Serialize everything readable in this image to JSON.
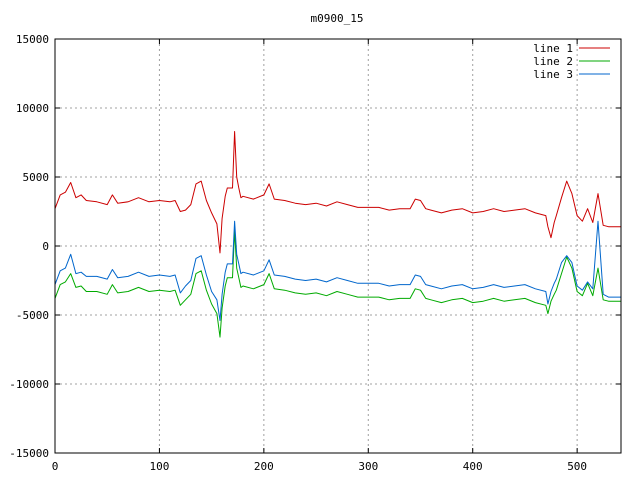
{
  "chart_data": {
    "type": "line",
    "title": "m0900_15",
    "xlabel": "",
    "ylabel": "",
    "xlim": [
      0,
      542
    ],
    "ylim": [
      -15000,
      15000
    ],
    "x_ticks": [
      0,
      100,
      200,
      300,
      400,
      500
    ],
    "y_ticks": [
      -15000,
      -10000,
      -5000,
      0,
      5000,
      10000,
      15000
    ],
    "grid": true,
    "legend_position": "top-right",
    "series": [
      {
        "name": "line 1",
        "color": "#cc0000",
        "x": [
          0,
          5,
          10,
          15,
          20,
          25,
          30,
          40,
          50,
          55,
          60,
          70,
          80,
          90,
          100,
          110,
          115,
          120,
          125,
          130,
          135,
          140,
          145,
          150,
          155,
          158,
          160,
          163,
          165,
          170,
          172,
          174,
          176,
          178,
          180,
          190,
          200,
          205,
          210,
          220,
          230,
          240,
          250,
          260,
          270,
          280,
          290,
          300,
          310,
          320,
          330,
          340,
          345,
          350,
          355,
          360,
          370,
          380,
          390,
          400,
          410,
          420,
          430,
          440,
          450,
          460,
          470,
          472,
          475,
          478,
          480,
          485,
          490,
          495,
          500,
          505,
          510,
          515,
          520,
          525,
          530,
          542
        ],
        "y": [
          2700,
          3700,
          3900,
          4600,
          3500,
          3700,
          3300,
          3200,
          3000,
          3700,
          3100,
          3200,
          3500,
          3200,
          3300,
          3200,
          3300,
          2500,
          2600,
          3000,
          4500,
          4700,
          3300,
          2400,
          1600,
          -500,
          2000,
          3600,
          4200,
          4200,
          8300,
          5000,
          4200,
          3500,
          3600,
          3400,
          3700,
          4500,
          3400,
          3300,
          3100,
          3000,
          3100,
          2900,
          3200,
          3000,
          2800,
          2800,
          2800,
          2600,
          2700,
          2700,
          3400,
          3300,
          2700,
          2600,
          2400,
          2600,
          2700,
          2400,
          2500,
          2700,
          2500,
          2600,
          2700,
          2400,
          2200,
          1400,
          600,
          1700,
          2200,
          3500,
          4700,
          3800,
          2200,
          1800,
          2700,
          1700,
          3800,
          1500,
          1400,
          1400
        ]
      },
      {
        "name": "line 2",
        "color": "#00aa00",
        "x": [
          0,
          5,
          10,
          15,
          20,
          25,
          30,
          40,
          50,
          55,
          60,
          70,
          80,
          90,
          100,
          110,
          115,
          120,
          125,
          130,
          135,
          140,
          145,
          150,
          155,
          158,
          160,
          163,
          165,
          170,
          172,
          174,
          176,
          178,
          180,
          190,
          200,
          205,
          210,
          220,
          230,
          240,
          250,
          260,
          270,
          280,
          290,
          300,
          310,
          320,
          330,
          340,
          345,
          350,
          355,
          360,
          370,
          380,
          390,
          400,
          410,
          420,
          430,
          440,
          450,
          460,
          470,
          472,
          475,
          478,
          480,
          485,
          490,
          495,
          500,
          505,
          510,
          515,
          520,
          525,
          530,
          542
        ],
        "y": [
          -3800,
          -2800,
          -2600,
          -2000,
          -3000,
          -2900,
          -3300,
          -3300,
          -3500,
          -2800,
          -3400,
          -3300,
          -3000,
          -3300,
          -3200,
          -3300,
          -3200,
          -4300,
          -3900,
          -3500,
          -2000,
          -1800,
          -3200,
          -4200,
          -4900,
          -6600,
          -4500,
          -2900,
          -2300,
          -2300,
          1100,
          -1600,
          -2300,
          -3000,
          -2900,
          -3100,
          -2800,
          -2000,
          -3100,
          -3200,
          -3400,
          -3500,
          -3400,
          -3600,
          -3300,
          -3500,
          -3700,
          -3700,
          -3700,
          -3900,
          -3800,
          -3800,
          -3100,
          -3200,
          -3800,
          -3900,
          -4100,
          -3900,
          -3800,
          -4100,
          -4000,
          -3800,
          -4000,
          -3900,
          -3800,
          -4100,
          -4300,
          -4900,
          -4000,
          -3500,
          -3200,
          -2000,
          -800,
          -1600,
          -3300,
          -3600,
          -2700,
          -3600,
          -1600,
          -3900,
          -4000,
          -4000
        ]
      },
      {
        "name": "line 3",
        "color": "#0066cc",
        "x": [
          0,
          5,
          10,
          15,
          20,
          25,
          30,
          40,
          50,
          55,
          60,
          70,
          80,
          90,
          100,
          110,
          115,
          120,
          125,
          130,
          135,
          140,
          145,
          150,
          155,
          158,
          160,
          163,
          165,
          170,
          172,
          174,
          176,
          178,
          180,
          190,
          200,
          205,
          210,
          220,
          230,
          240,
          250,
          260,
          270,
          280,
          290,
          300,
          310,
          320,
          330,
          340,
          345,
          350,
          355,
          360,
          370,
          380,
          390,
          400,
          410,
          420,
          430,
          440,
          450,
          460,
          470,
          472,
          475,
          478,
          480,
          485,
          490,
          495,
          500,
          505,
          510,
          515,
          520,
          525,
          530,
          542
        ],
        "y": [
          -2800,
          -1800,
          -1600,
          -600,
          -2000,
          -1900,
          -2200,
          -2200,
          -2400,
          -1700,
          -2300,
          -2200,
          -1900,
          -2200,
          -2100,
          -2200,
          -2100,
          -3400,
          -2900,
          -2500,
          -900,
          -700,
          -2100,
          -3300,
          -3900,
          -5400,
          -3500,
          -1900,
          -1300,
          -1300,
          1800,
          -600,
          -1300,
          -2000,
          -1900,
          -2100,
          -1800,
          -1000,
          -2100,
          -2200,
          -2400,
          -2500,
          -2400,
          -2600,
          -2300,
          -2500,
          -2700,
          -2700,
          -2700,
          -2900,
          -2800,
          -2800,
          -2100,
          -2200,
          -2800,
          -2900,
          -3100,
          -2900,
          -2800,
          -3100,
          -3000,
          -2800,
          -3000,
          -2900,
          -2800,
          -3100,
          -3300,
          -4200,
          -3300,
          -2700,
          -2400,
          -1200,
          -700,
          -1200,
          -2900,
          -3200,
          -2600,
          -3100,
          1800,
          -3500,
          -3700,
          -3700
        ]
      }
    ]
  }
}
